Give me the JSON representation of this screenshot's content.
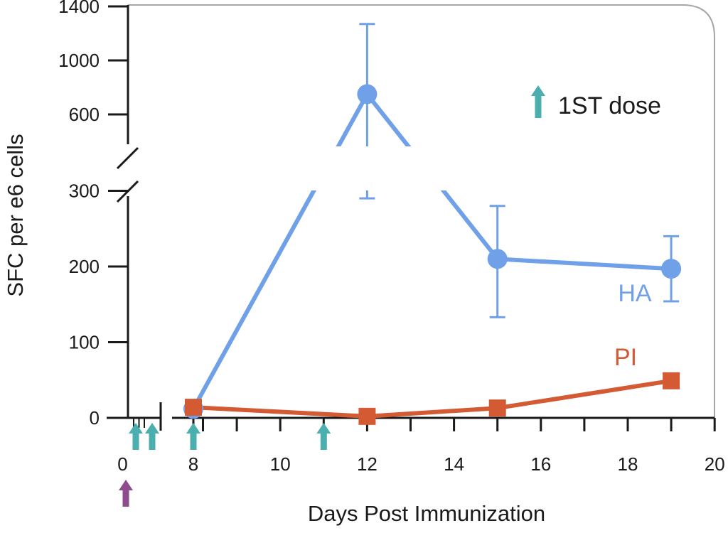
{
  "chart_data": {
    "type": "line",
    "xlabel": "Days Post Immunization",
    "ylabel": "SFC per e6 cells",
    "x_ticks": [
      {
        "value": 0,
        "label": "0"
      },
      {
        "value": 8,
        "label": "8"
      },
      {
        "value": 10,
        "label": "10"
      },
      {
        "value": 12,
        "label": "12"
      },
      {
        "value": 14,
        "label": "14"
      },
      {
        "value": 16,
        "label": "16"
      },
      {
        "value": 18,
        "label": "18"
      },
      {
        "value": 20,
        "label": "20"
      }
    ],
    "xlim": [
      0,
      20
    ],
    "x_axis_break_after": 0,
    "y_lower_ticks": [
      {
        "value": 0,
        "label": "0"
      },
      {
        "value": 100,
        "label": "100"
      },
      {
        "value": 200,
        "label": "200"
      },
      {
        "value": 300,
        "label": "300"
      }
    ],
    "y_upper_ticks": [
      {
        "value": 600,
        "label": "600"
      },
      {
        "value": 1000,
        "label": "1000"
      },
      {
        "value": 1400,
        "label": "1400"
      }
    ],
    "y_axis_break": [
      300,
      600
    ],
    "ylim": [
      0,
      1400
    ],
    "series": [
      {
        "name": "HA",
        "color": "#6FA0E8",
        "marker": "circle",
        "points": [
          {
            "x": 8,
            "y": 12
          },
          {
            "x": 12,
            "y": 750,
            "err_low": 290,
            "err_high": 1270
          },
          {
            "x": 15,
            "y": 210,
            "err_low": 133,
            "err_high": 280
          },
          {
            "x": 19,
            "y": 197,
            "err_low": 154,
            "err_high": 240
          }
        ]
      },
      {
        "name": "PI",
        "color": "#D45A34",
        "marker": "square",
        "points": [
          {
            "x": 8,
            "y": 14
          },
          {
            "x": 12,
            "y": 2
          },
          {
            "x": 15,
            "y": 13
          },
          {
            "x": 19,
            "y": 49
          }
        ]
      }
    ],
    "dose_arrows": {
      "color": "#4BAFAF",
      "x_values": [
        0.5,
        1.5,
        8,
        11
      ]
    },
    "prime_arrow": {
      "color": "#8E4B8E",
      "x_value": 0
    },
    "legend": {
      "label": "1ST dose",
      "position": "top-right",
      "arrow_color": "#4BAFAF"
    },
    "grid": false
  }
}
